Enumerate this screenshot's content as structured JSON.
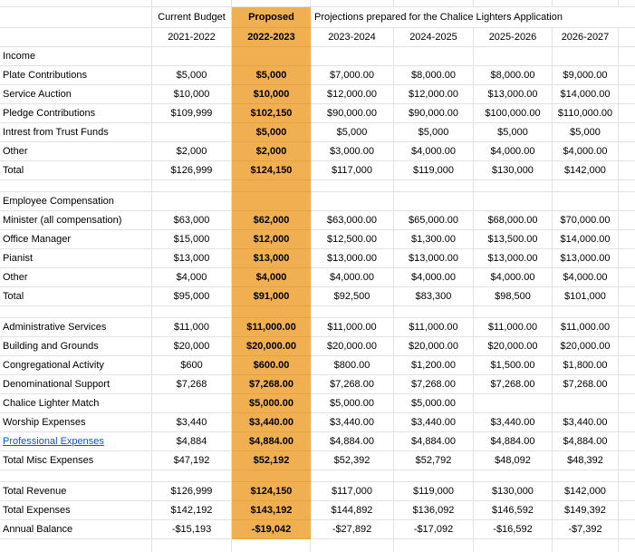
{
  "sheet": {
    "colors": {
      "highlight": "#f0b052",
      "highlight_gridline": "#e2a440",
      "gridline": "#e2e2e2",
      "link": "#1155cc"
    },
    "header": {
      "current_budget": "Current Budget",
      "proposed": "Proposed",
      "projections_note": "Projections prepared for the Chalice Lighters Application"
    },
    "years": [
      "2021-2022",
      "2022-2023",
      "2023-2024",
      "2024-2025",
      "2025-2026",
      "2026-2027"
    ],
    "rows": [
      {
        "type": "section",
        "label": "Income",
        "values": [
          "",
          "",
          "",
          "",
          "",
          ""
        ]
      },
      {
        "type": "data",
        "label": "Plate Contributions",
        "values": [
          "$5,000",
          "$5,000",
          "$7,000.00",
          "$8,000.00",
          "$8,000.00",
          "$9,000.00"
        ]
      },
      {
        "type": "data",
        "label": "Service Auction",
        "values": [
          "$10,000",
          "$10,000",
          "$12,000.00",
          "$12,000.00",
          "$13,000.00",
          "$14,000.00"
        ]
      },
      {
        "type": "data",
        "label": "Pledge Contributions",
        "values": [
          "$109,999",
          "$102,150",
          "$90,000.00",
          "$90,000.00",
          "$100,000.00",
          "$110,000.00"
        ]
      },
      {
        "type": "data",
        "label": "Intrest from Trust Funds",
        "values": [
          "",
          "$5,000",
          "$5,000",
          "$5,000",
          "$5,000",
          "$5,000"
        ]
      },
      {
        "type": "data",
        "label": "Other",
        "values": [
          "$2,000",
          "$2,000",
          "$3,000.00",
          "$4,000.00",
          "$4,000.00",
          "$4,000.00"
        ]
      },
      {
        "type": "data",
        "label": "Total",
        "values": [
          "$126,999",
          "$124,150",
          "$117,000",
          "$119,000",
          "$130,000",
          "$142,000"
        ]
      },
      {
        "type": "spacer",
        "label": "",
        "values": [
          "",
          "",
          "",
          "",
          "",
          ""
        ]
      },
      {
        "type": "section",
        "label": "Employee Compensation",
        "values": [
          "",
          "",
          "",
          "",
          "",
          ""
        ]
      },
      {
        "type": "data",
        "label": "Minister (all compensation)",
        "values": [
          "$63,000",
          "$62,000",
          "$63,000.00",
          "$65,000.00",
          "$68,000.00",
          "$70,000.00"
        ]
      },
      {
        "type": "data",
        "label": "Office Manager",
        "values": [
          "$15,000",
          "$12,000",
          "$12,500.00",
          "$1,300.00",
          "$13,500.00",
          "$14,000.00"
        ]
      },
      {
        "type": "data",
        "label": "Pianist",
        "values": [
          "$13,000",
          "$13,000",
          "$13,000.00",
          "$13,000.00",
          "$13,000.00",
          "$13,000.00"
        ]
      },
      {
        "type": "data",
        "label": "Other",
        "values": [
          "$4,000",
          "$4,000",
          "$4,000.00",
          "$4,000.00",
          "$4,000.00",
          "$4,000.00"
        ]
      },
      {
        "type": "data",
        "label": "Total",
        "values": [
          "$95,000",
          "$91,000",
          "$92,500",
          "$83,300",
          "$98,500",
          "$101,000"
        ]
      },
      {
        "type": "spacer",
        "label": "",
        "values": [
          "",
          "",
          "",
          "",
          "",
          ""
        ]
      },
      {
        "type": "data",
        "label": "Administrative Services",
        "values": [
          "$11,000",
          "$11,000.00",
          "$11,000.00",
          "$11,000.00",
          "$11,000.00",
          "$11,000.00"
        ]
      },
      {
        "type": "data",
        "label": "Building and Grounds",
        "values": [
          "$20,000",
          "$20,000.00",
          "$20,000.00",
          "$20,000.00",
          "$20,000.00",
          "$20,000.00"
        ]
      },
      {
        "type": "data",
        "label": "Congregational Activity",
        "values": [
          "$600",
          "$600.00",
          "$800.00",
          "$1,200.00",
          "$1,500.00",
          "$1,800.00"
        ]
      },
      {
        "type": "data",
        "label": "Denominational Support",
        "values": [
          "$7,268",
          "$7,268.00",
          "$7,268.00",
          "$7,268.00",
          "$7,268.00",
          "$7,268.00"
        ]
      },
      {
        "type": "data",
        "label": "Chalice Lighter Match",
        "values": [
          "",
          "$5,000.00",
          "$5,000.00",
          "$5,000.00",
          "",
          ""
        ]
      },
      {
        "type": "data",
        "label": "Worship Expenses",
        "values": [
          "$3,440",
          "$3,440.00",
          "$3,440.00",
          "$3,440.00",
          "$3,440.00",
          "$3,440.00"
        ]
      },
      {
        "type": "data",
        "label": "Professional Expenses",
        "link": true,
        "values": [
          "$4,884",
          "$4,884.00",
          "$4,884.00",
          "$4,884.00",
          "$4,884.00",
          "$4,884.00"
        ]
      },
      {
        "type": "data",
        "label": "Total Misc Expenses",
        "values": [
          "$47,192",
          "$52,192",
          "$52,392",
          "$52,792",
          "$48,092",
          "$48,392"
        ]
      },
      {
        "type": "spacer",
        "label": "",
        "values": [
          "",
          "",
          "",
          "",
          "",
          ""
        ]
      },
      {
        "type": "data",
        "label": "Total Revenue",
        "values": [
          "$126,999",
          "$124,150",
          "$117,000",
          "$119,000",
          "$130,000",
          "$142,000"
        ]
      },
      {
        "type": "data",
        "label": "Total Expenses",
        "values": [
          "$142,192",
          "$143,192",
          "$144,892",
          "$136,092",
          "$146,592",
          "$149,392"
        ]
      },
      {
        "type": "data",
        "label": "Annual Balance",
        "values": [
          "-$15,193",
          "-$19,042",
          "-$27,892",
          "-$17,092",
          "-$16,592",
          "-$7,392"
        ]
      }
    ]
  }
}
